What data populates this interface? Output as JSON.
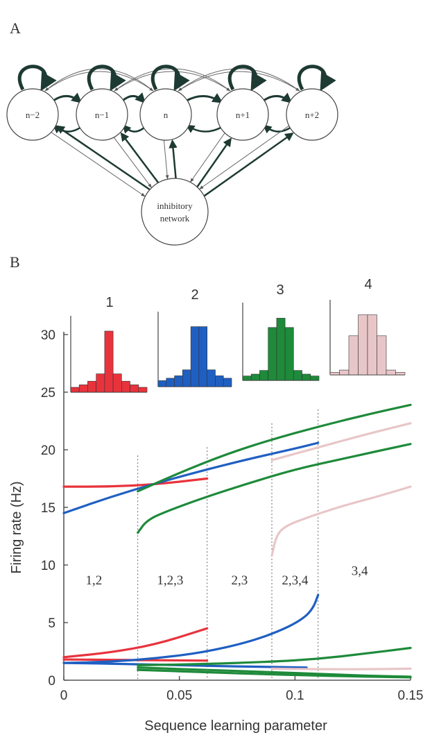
{
  "panel_labels": {
    "a": "A",
    "b": "B"
  },
  "network": {
    "nodes": [
      {
        "id": "n-2",
        "label": "n−2"
      },
      {
        "id": "n-1",
        "label": "n−1"
      },
      {
        "id": "n",
        "label": "n"
      },
      {
        "id": "n+1",
        "label": "n+1"
      },
      {
        "id": "n+2",
        "label": "n+2"
      }
    ],
    "inhibitory": {
      "line1": "inhibitory",
      "line2": "network"
    }
  },
  "chart_data": {
    "type": "line",
    "xlabel": "Sequence learning parameter",
    "ylabel": "Firing rate (Hz)",
    "xlim": [
      0,
      0.15
    ],
    "ylim": [
      0,
      30
    ],
    "xticks": [
      0,
      0.05,
      0.1,
      0.15
    ],
    "xtick_labels": [
      "0",
      "0.05",
      "0.1",
      "0.15"
    ],
    "yticks": [
      0,
      5,
      10,
      15,
      20,
      25,
      30
    ],
    "ytick_labels": [
      "0",
      "5",
      "10",
      "15",
      "20",
      "25",
      "30"
    ],
    "boundaries": [
      0.032,
      0.062,
      0.09,
      0.11
    ],
    "regions": [
      {
        "label": "1,2",
        "x": 0.013,
        "y": 10
      },
      {
        "label": "1,2,3",
        "x": 0.046,
        "y": 10
      },
      {
        "label": "2,3",
        "x": 0.076,
        "y": 10
      },
      {
        "label": "2,3,4",
        "x": 0.1,
        "y": 10
      },
      {
        "label": "3,4",
        "x": 0.128,
        "y": 10.8
      }
    ],
    "colors": {
      "1": "#e8333c",
      "2": "#1f5fc2",
      "3": "#1e8a3a",
      "4": "#e8c6c8"
    },
    "series": [
      {
        "color": "1",
        "points": [
          [
            0,
            16.8
          ],
          [
            0.02,
            16.8
          ],
          [
            0.04,
            17.0
          ],
          [
            0.062,
            17.5
          ]
        ]
      },
      {
        "color": "1",
        "points": [
          [
            0,
            2.0
          ],
          [
            0.02,
            2.4
          ],
          [
            0.04,
            3.1
          ],
          [
            0.062,
            4.5
          ]
        ]
      },
      {
        "color": "1",
        "points": [
          [
            0,
            1.8
          ],
          [
            0.062,
            1.7
          ]
        ]
      },
      {
        "color": "2",
        "points": [
          [
            0,
            14.5
          ],
          [
            0.02,
            15.9
          ],
          [
            0.04,
            17.1
          ],
          [
            0.062,
            18.3
          ],
          [
            0.08,
            19.2
          ],
          [
            0.1,
            20.1
          ],
          [
            0.11,
            20.6
          ]
        ]
      },
      {
        "color": "2",
        "points": [
          [
            0,
            1.5
          ],
          [
            0.02,
            1.6
          ],
          [
            0.04,
            1.9
          ],
          [
            0.06,
            2.4
          ],
          [
            0.08,
            3.3
          ],
          [
            0.095,
            4.4
          ],
          [
            0.104,
            5.4
          ],
          [
            0.108,
            6.3
          ],
          [
            0.11,
            7.4
          ]
        ]
      },
      {
        "color": "2",
        "points": [
          [
            0,
            1.5
          ],
          [
            0.03,
            1.4
          ],
          [
            0.06,
            1.25
          ],
          [
            0.09,
            1.15
          ],
          [
            0.105,
            1.1
          ]
        ]
      },
      {
        "color": "3",
        "points": [
          [
            0.032,
            16.4
          ],
          [
            0.05,
            18.0
          ],
          [
            0.07,
            19.6
          ],
          [
            0.09,
            20.9
          ],
          [
            0.11,
            22.0
          ],
          [
            0.13,
            23.0
          ],
          [
            0.15,
            23.9
          ]
        ]
      },
      {
        "color": "3",
        "points": [
          [
            0.032,
            12.8
          ],
          [
            0.036,
            13.9
          ],
          [
            0.045,
            14.7
          ],
          [
            0.06,
            15.8
          ],
          [
            0.08,
            17.1
          ],
          [
            0.1,
            18.3
          ],
          [
            0.12,
            19.2
          ],
          [
            0.15,
            20.5
          ]
        ]
      },
      {
        "color": "3",
        "points": [
          [
            0.032,
            1.3
          ],
          [
            0.06,
            1.4
          ],
          [
            0.09,
            1.6
          ],
          [
            0.11,
            1.85
          ],
          [
            0.13,
            2.3
          ],
          [
            0.15,
            2.8
          ]
        ]
      },
      {
        "color": "3",
        "points": [
          [
            0.032,
            1.1
          ],
          [
            0.06,
            0.9
          ],
          [
            0.09,
            0.7
          ],
          [
            0.11,
            0.55
          ],
          [
            0.13,
            0.4
          ],
          [
            0.15,
            0.3
          ]
        ]
      },
      {
        "color": "3",
        "points": [
          [
            0.032,
            0.9
          ],
          [
            0.06,
            0.7
          ],
          [
            0.09,
            0.5
          ],
          [
            0.12,
            0.35
          ],
          [
            0.15,
            0.25
          ]
        ]
      },
      {
        "color": "4",
        "points": [
          [
            0.09,
            19.1
          ],
          [
            0.11,
            20.2
          ],
          [
            0.13,
            21.3
          ],
          [
            0.15,
            22.3
          ]
        ]
      },
      {
        "color": "4",
        "points": [
          [
            0.09,
            10.8
          ],
          [
            0.092,
            12.6
          ],
          [
            0.096,
            13.4
          ],
          [
            0.105,
            14.1
          ],
          [
            0.12,
            15.1
          ],
          [
            0.135,
            15.9
          ],
          [
            0.15,
            16.8
          ]
        ]
      },
      {
        "color": "4",
        "points": [
          [
            0.09,
            1.0
          ],
          [
            0.11,
            0.95
          ],
          [
            0.13,
            0.95
          ],
          [
            0.15,
            1.0
          ]
        ]
      }
    ],
    "insets": [
      {
        "label": "1",
        "color": "1",
        "values": [
          0.08,
          0.12,
          0.18,
          0.3,
          1.0,
          0.3,
          0.18,
          0.12,
          0.08
        ]
      },
      {
        "label": "2",
        "color": "2",
        "values": [
          0.1,
          0.14,
          0.18,
          0.28,
          1.0,
          1.0,
          0.28,
          0.18,
          0.14
        ]
      },
      {
        "label": "3",
        "color": "3",
        "values": [
          0.07,
          0.1,
          0.16,
          0.85,
          1.0,
          0.85,
          0.16,
          0.1,
          0.07
        ]
      },
      {
        "label": "4",
        "color": "4",
        "values": [
          0.04,
          0.08,
          0.65,
          1.0,
          1.0,
          0.65,
          0.08,
          0.04
        ]
      }
    ]
  }
}
